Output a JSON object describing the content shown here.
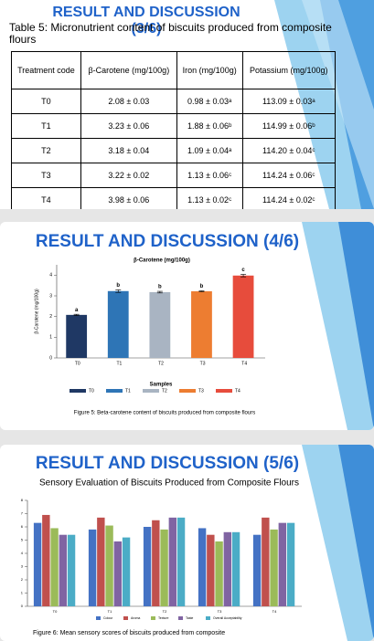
{
  "slides": [
    {
      "title": "RESULT AND DISCUSSION (3/6)",
      "caption": "Table 5: Micronutrient content of biscuits produced from composite flours",
      "table": {
        "header": [
          "Treatment code",
          "β-Carotene (mg/100g)",
          "Iron (mg/100g)",
          "Potassium (mg/100g)"
        ],
        "rows": [
          [
            "T0",
            "2.08 ± 0.03",
            "0.98 ± 0.03ᵃ",
            "113.09 ± 0.03ᵃ"
          ],
          [
            "T1",
            "3.23 ± 0.06",
            "1.88 ± 0.06ᵇ",
            "114.99 ± 0.06ᵇ"
          ],
          [
            "T2",
            "3.18 ± 0.04",
            "1.09 ± 0.04ᵃ",
            "114.20 ± 0.04ᶜ"
          ],
          [
            "T3",
            "3.22 ± 0.02",
            "1.13 ± 0.06ᶜ",
            "114.24 ± 0.06ᶜ"
          ],
          [
            "T4",
            "3.98 ± 0.06",
            "1.13 ± 0.02ᶜ",
            "114.24 ± 0.02ᶜ"
          ]
        ]
      }
    },
    {
      "title": "RESULT AND DISCUSSION (4/6)",
      "chart_data": {
        "type": "bar",
        "title": "β-Carotene (mg/100g)",
        "y_label": "β-Carotene (mg/100g)",
        "x_label": "Samples",
        "categories": [
          "T0",
          "T1",
          "T2",
          "T3",
          "T4"
        ],
        "values": [
          2.08,
          3.23,
          3.18,
          3.22,
          3.98
        ],
        "errors": [
          0.03,
          0.06,
          0.04,
          0.02,
          0.06
        ],
        "annotations": [
          "a",
          "b",
          "b",
          "b",
          "c"
        ],
        "colors": [
          "#1f3864",
          "#2e75b6",
          "#a9b4c2",
          "#ed7d31",
          "#e74c3c"
        ],
        "ylim": [
          0,
          4.5
        ],
        "yticks": [
          0,
          1,
          2,
          3,
          4
        ],
        "legend": "bottom"
      },
      "caption": "Figure 5: Beta-carotene content of biscuits produced from composite flours"
    },
    {
      "title": "RESULT AND DISCUSSION (5/6)",
      "subtitle": "Sensory Evaluation of Biscuits Produced from Composite Flours",
      "chart_data": {
        "type": "bar",
        "categories": [
          "T0",
          "T1",
          "T2",
          "T3",
          "T4"
        ],
        "series": [
          {
            "name": "Colour",
            "color": "#4472c4",
            "values": [
              6.3,
              5.8,
              6.0,
              5.9,
              5.4
            ]
          },
          {
            "name": "Aroma",
            "color": "#c0504d",
            "values": [
              6.9,
              6.7,
              6.5,
              5.4,
              6.7
            ]
          },
          {
            "name": "Texture",
            "color": "#9bbb59",
            "values": [
              5.9,
              6.1,
              5.8,
              4.9,
              5.8
            ]
          },
          {
            "name": "Taste",
            "color": "#8064a2",
            "values": [
              5.4,
              4.9,
              6.7,
              5.6,
              6.3
            ]
          },
          {
            "name": "Overall Acceptability",
            "color": "#4bacc6",
            "values": [
              5.4,
              5.2,
              6.7,
              5.6,
              6.3
            ]
          }
        ],
        "ylim": [
          0,
          8
        ],
        "yticks": [
          0,
          1,
          2,
          3,
          4,
          5,
          6,
          7,
          8
        ],
        "legend": "bottom"
      },
      "caption": "Figure 6: Mean sensory scores of biscuits produced from composite"
    }
  ]
}
